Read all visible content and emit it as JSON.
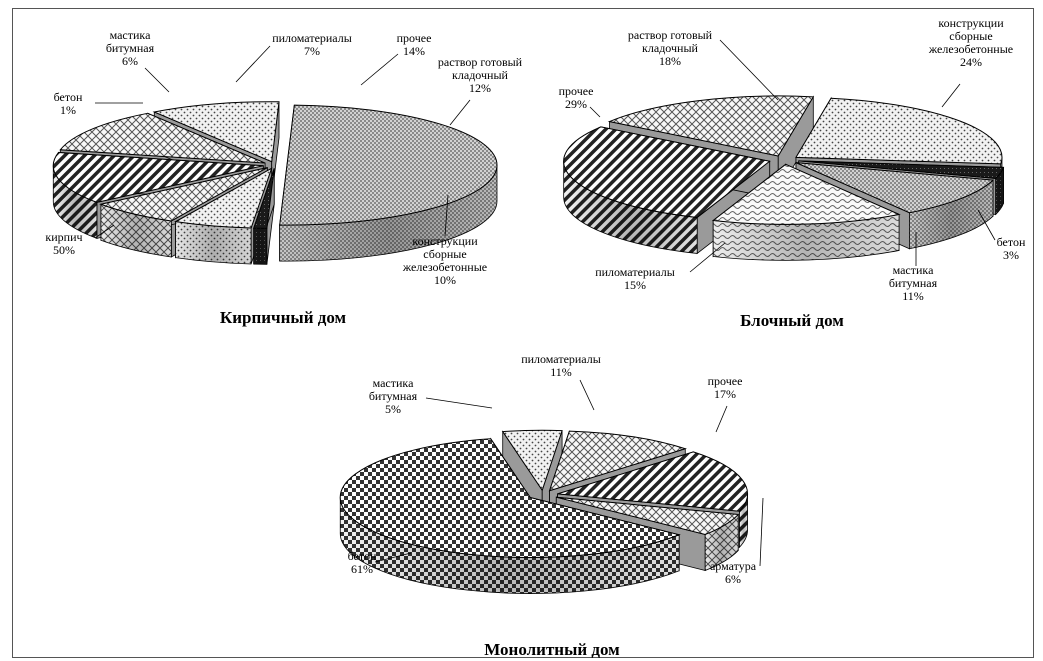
{
  "chart_data": [
    {
      "type": "pie",
      "title": "Кирпичный дом",
      "slices": [
        {
          "label": [
            "кирпич"
          ],
          "pct": "50%",
          "value": 50,
          "pattern": "pat-fine"
        },
        {
          "label": [
            "бетон"
          ],
          "pct": "1%",
          "value": 1,
          "pattern": "pat-black"
        },
        {
          "label": [
            "мастика",
            "битумная"
          ],
          "pct": "6%",
          "value": 6,
          "pattern": "pat-dots"
        },
        {
          "label": [
            "пиломатериалы"
          ],
          "pct": "7%",
          "value": 7,
          "pattern": "pat-cross"
        },
        {
          "label": [
            "прочее"
          ],
          "pct": "14%",
          "value": 14,
          "pattern": "pat-diag"
        },
        {
          "label": [
            "раствор готовый",
            "кладочный"
          ],
          "pct": "12%",
          "value": 12,
          "pattern": "pat-cross"
        },
        {
          "label": [
            "конструкции",
            "сборные",
            "железобетонные"
          ],
          "pct": "10%",
          "value": 10,
          "pattern": "pat-dots"
        }
      ]
    },
    {
      "type": "pie",
      "title": "Блочный дом",
      "slices": [
        {
          "label": [
            "раствор готовый",
            "кладочный"
          ],
          "pct": "18%",
          "value": 18,
          "pattern": "pat-cross"
        },
        {
          "label": [
            "конструкции",
            "сборные",
            "железобетонные"
          ],
          "pct": "24%",
          "value": 24,
          "pattern": "pat-dots"
        },
        {
          "label": [
            "бетон"
          ],
          "pct": "3%",
          "value": 3,
          "pattern": "pat-black"
        },
        {
          "label": [
            "мастика",
            "битумная"
          ],
          "pct": "11%",
          "value": 11,
          "pattern": "pat-fine"
        },
        {
          "label": [
            "пиломатериалы"
          ],
          "pct": "15%",
          "value": 15,
          "pattern": "pat-wave"
        },
        {
          "label": [
            "прочее"
          ],
          "pct": "29%",
          "value": 29,
          "pattern": "pat-diag"
        }
      ]
    },
    {
      "type": "pie",
      "title": "Монолитный дом",
      "slices": [
        {
          "label": [
            "пиломатериалы"
          ],
          "pct": "11%",
          "value": 11,
          "pattern": "pat-cross"
        },
        {
          "label": [
            "прочее"
          ],
          "pct": "17%",
          "value": 17,
          "pattern": "pat-diag"
        },
        {
          "label": [
            "арматура"
          ],
          "pct": "6%",
          "value": 6,
          "pattern": "pat-cross"
        },
        {
          "label": [
            "бетон"
          ],
          "pct": "61%",
          "value": 61,
          "pattern": "pat-check"
        },
        {
          "label": [
            "мастика",
            "битумная"
          ],
          "pct": "5%",
          "value": 5,
          "pattern": "pat-dots"
        }
      ]
    }
  ],
  "colors": {
    "ink": "#000000",
    "frame": "#555555",
    "side": "#8c8c8c"
  }
}
